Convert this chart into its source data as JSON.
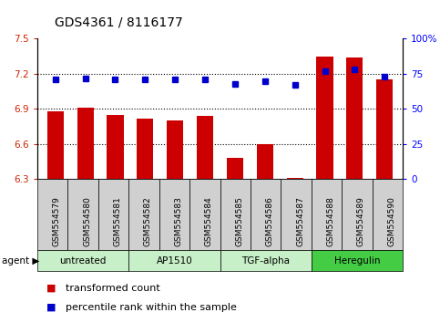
{
  "title": "GDS4361 / 8116177",
  "samples": [
    "GSM554579",
    "GSM554580",
    "GSM554581",
    "GSM554582",
    "GSM554583",
    "GSM554584",
    "GSM554585",
    "GSM554586",
    "GSM554587",
    "GSM554588",
    "GSM554589",
    "GSM554590"
  ],
  "bar_values": [
    6.88,
    6.91,
    6.85,
    6.82,
    6.8,
    6.84,
    6.48,
    6.6,
    6.31,
    7.35,
    7.34,
    7.15
  ],
  "percentile_values": [
    71,
    72,
    71,
    71,
    71,
    71,
    68,
    70,
    67,
    77,
    78,
    73
  ],
  "bar_color": "#cc0000",
  "dot_color": "#0000cc",
  "ylim_left": [
    6.3,
    7.5
  ],
  "ylim_right": [
    0,
    100
  ],
  "yticks_left": [
    6.3,
    6.6,
    6.9,
    7.2,
    7.5
  ],
  "ytick_labels_left": [
    "6.3",
    "6.6",
    "6.9",
    "7.2",
    "7.5"
  ],
  "yticks_right": [
    0,
    25,
    50,
    75,
    100
  ],
  "ytick_labels_right": [
    "0",
    "25",
    "50",
    "75",
    "100%"
  ],
  "hlines": [
    6.6,
    6.9,
    7.2
  ],
  "agent_groups": [
    {
      "label": "untreated",
      "start": 0,
      "end": 2,
      "color": "#c8f0c8"
    },
    {
      "label": "AP1510",
      "start": 3,
      "end": 5,
      "color": "#c8f0c8"
    },
    {
      "label": "TGF-alpha",
      "start": 6,
      "end": 8,
      "color": "#c8f0c8"
    },
    {
      "label": "Heregulin",
      "start": 9,
      "end": 11,
      "color": "#44cc44"
    }
  ],
  "legend_bar_label": "transformed count",
  "legend_dot_label": "percentile rank within the sample",
  "agent_label": "agent",
  "bar_width": 0.55,
  "background_color": "#ffffff",
  "plot_bg_color": "#ffffff",
  "sample_box_color": "#d0d0d0",
  "title_fontsize": 10,
  "tick_fontsize": 7.5,
  "legend_fontsize": 8,
  "sample_fontsize": 6.5
}
